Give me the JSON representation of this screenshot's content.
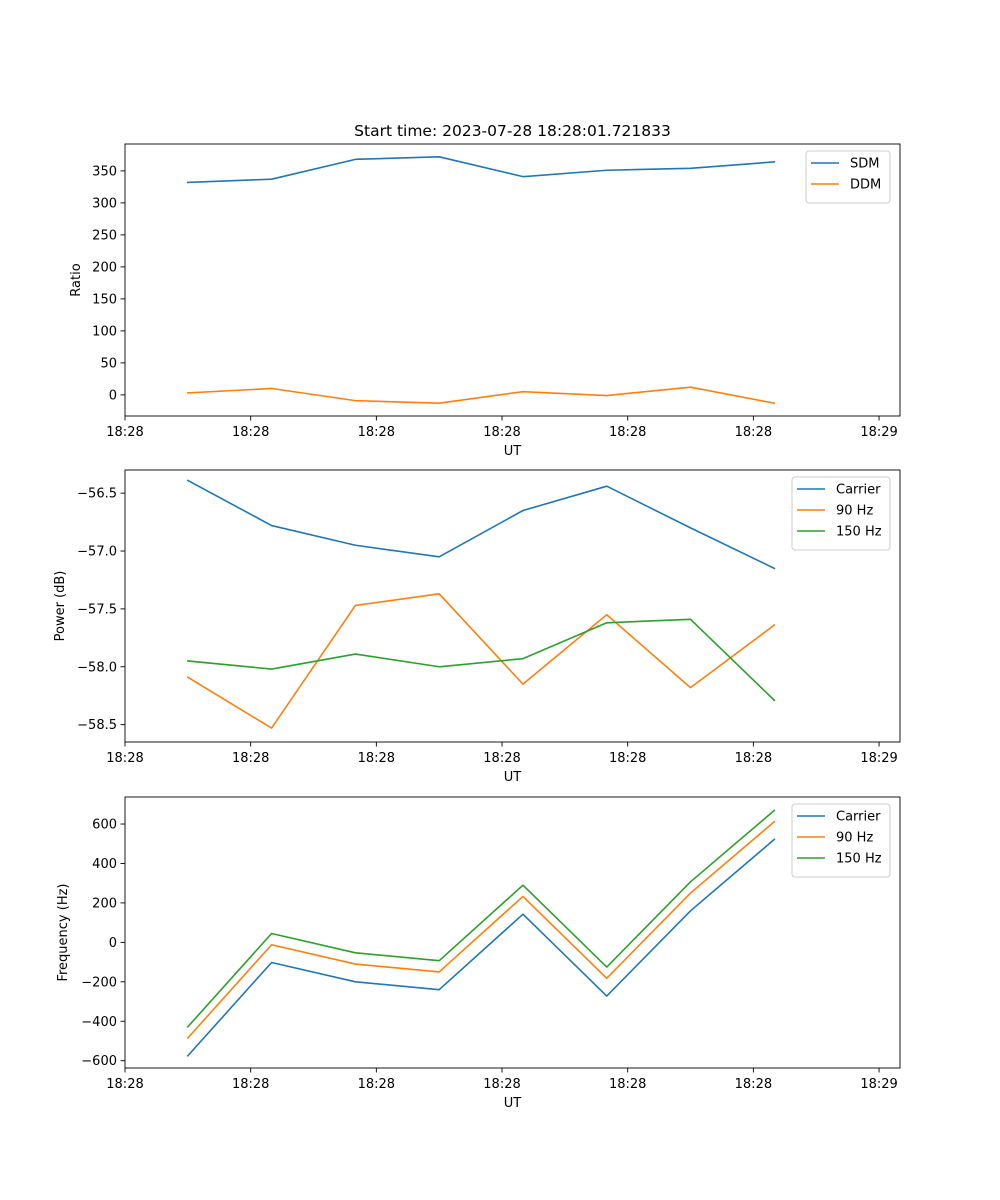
{
  "chart_data": [
    {
      "type": "line",
      "title": "Start time: 2023-07-28 18:28:01.721833",
      "xlabel": "UT",
      "ylabel": "Ratio",
      "xlim": [
        -0.75,
        8.5
      ],
      "ylim": [
        -33,
        392
      ],
      "x_ticks": [
        {
          "value": -0.75,
          "label": "18:28"
        },
        {
          "value": 0.75,
          "label": "18:28"
        },
        {
          "value": 2.25,
          "label": "18:28"
        },
        {
          "value": 3.75,
          "label": "18:28"
        },
        {
          "value": 5.25,
          "label": "18:28"
        },
        {
          "value": 6.75,
          "label": "18:28"
        },
        {
          "value": 8.25,
          "label": "18:29"
        }
      ],
      "y_ticks": [
        0,
        50,
        100,
        150,
        200,
        250,
        300,
        350
      ],
      "legend_position": "upper right",
      "x": [
        0,
        1,
        2,
        3,
        4,
        5,
        6,
        7
      ],
      "series": [
        {
          "name": "SDM",
          "color": "#1f77b4",
          "values": [
            332,
            337,
            368,
            372,
            341,
            351,
            354,
            364
          ]
        },
        {
          "name": "DDM",
          "color": "#ff7f0e",
          "values": [
            3,
            10,
            -9,
            -13,
            5,
            -1,
            12,
            -13
          ]
        }
      ]
    },
    {
      "type": "line",
      "title": "",
      "xlabel": "UT",
      "ylabel": "Power (dB)",
      "xlim": [
        -0.75,
        8.5
      ],
      "ylim": [
        -58.65,
        -56.3
      ],
      "x_ticks": [
        {
          "value": -0.75,
          "label": "18:28"
        },
        {
          "value": 0.75,
          "label": "18:28"
        },
        {
          "value": 2.25,
          "label": "18:28"
        },
        {
          "value": 3.75,
          "label": "18:28"
        },
        {
          "value": 5.25,
          "label": "18:28"
        },
        {
          "value": 6.75,
          "label": "18:28"
        },
        {
          "value": 8.25,
          "label": "18:29"
        }
      ],
      "y_ticks": [
        {
          "value": -58.5,
          "label": "−58.5"
        },
        {
          "value": -58.0,
          "label": "−58.0"
        },
        {
          "value": -57.5,
          "label": "−57.5"
        },
        {
          "value": -57.0,
          "label": "−57.0"
        },
        {
          "value": -56.5,
          "label": "−56.5"
        }
      ],
      "legend_position": "upper right",
      "x": [
        0,
        1,
        2,
        3,
        4,
        5,
        6,
        7
      ],
      "series": [
        {
          "name": "Carrier",
          "color": "#1f77b4",
          "values": [
            -56.39,
            -56.78,
            -56.95,
            -57.05,
            -56.65,
            -56.44,
            -56.8,
            -57.15
          ]
        },
        {
          "name": "90 Hz",
          "color": "#ff7f0e",
          "values": [
            -58.09,
            -58.53,
            -57.47,
            -57.37,
            -58.15,
            -57.55,
            -58.18,
            -57.64
          ]
        },
        {
          "name": "150 Hz",
          "color": "#2ca02c",
          "values": [
            -57.95,
            -58.02,
            -57.89,
            -58.0,
            -57.93,
            -57.62,
            -57.59,
            -58.29
          ]
        }
      ]
    },
    {
      "type": "line",
      "title": "",
      "xlabel": "UT",
      "ylabel": "Frequency (Hz)",
      "xlim": [
        -0.75,
        8.5
      ],
      "ylim": [
        -637,
        737
      ],
      "x_ticks": [
        {
          "value": -0.75,
          "label": "18:28"
        },
        {
          "value": 0.75,
          "label": "18:28"
        },
        {
          "value": 2.25,
          "label": "18:28"
        },
        {
          "value": 3.75,
          "label": "18:28"
        },
        {
          "value": 5.25,
          "label": "18:28"
        },
        {
          "value": 6.75,
          "label": "18:28"
        },
        {
          "value": 8.25,
          "label": "18:29"
        }
      ],
      "y_ticks": [
        {
          "value": -600,
          "label": "−600"
        },
        {
          "value": -400,
          "label": "−400"
        },
        {
          "value": -200,
          "label": "−200"
        },
        {
          "value": 0,
          "label": "0"
        },
        {
          "value": 200,
          "label": "200"
        },
        {
          "value": 400,
          "label": "400"
        },
        {
          "value": 600,
          "label": "600"
        }
      ],
      "legend_position": "upper right",
      "x": [
        0,
        1,
        2,
        3,
        4,
        5,
        6,
        7
      ],
      "series": [
        {
          "name": "Carrier",
          "color": "#1f77b4",
          "values": [
            -575,
            -102,
            -200,
            -240,
            143,
            -272,
            160,
            522
          ]
        },
        {
          "name": "90 Hz",
          "color": "#ff7f0e",
          "values": [
            -485,
            -12,
            -110,
            -150,
            233,
            -182,
            250,
            612
          ]
        },
        {
          "name": "150 Hz",
          "color": "#2ca02c",
          "values": [
            -428,
            45,
            -53,
            -93,
            290,
            -125,
            307,
            669
          ]
        }
      ]
    }
  ]
}
